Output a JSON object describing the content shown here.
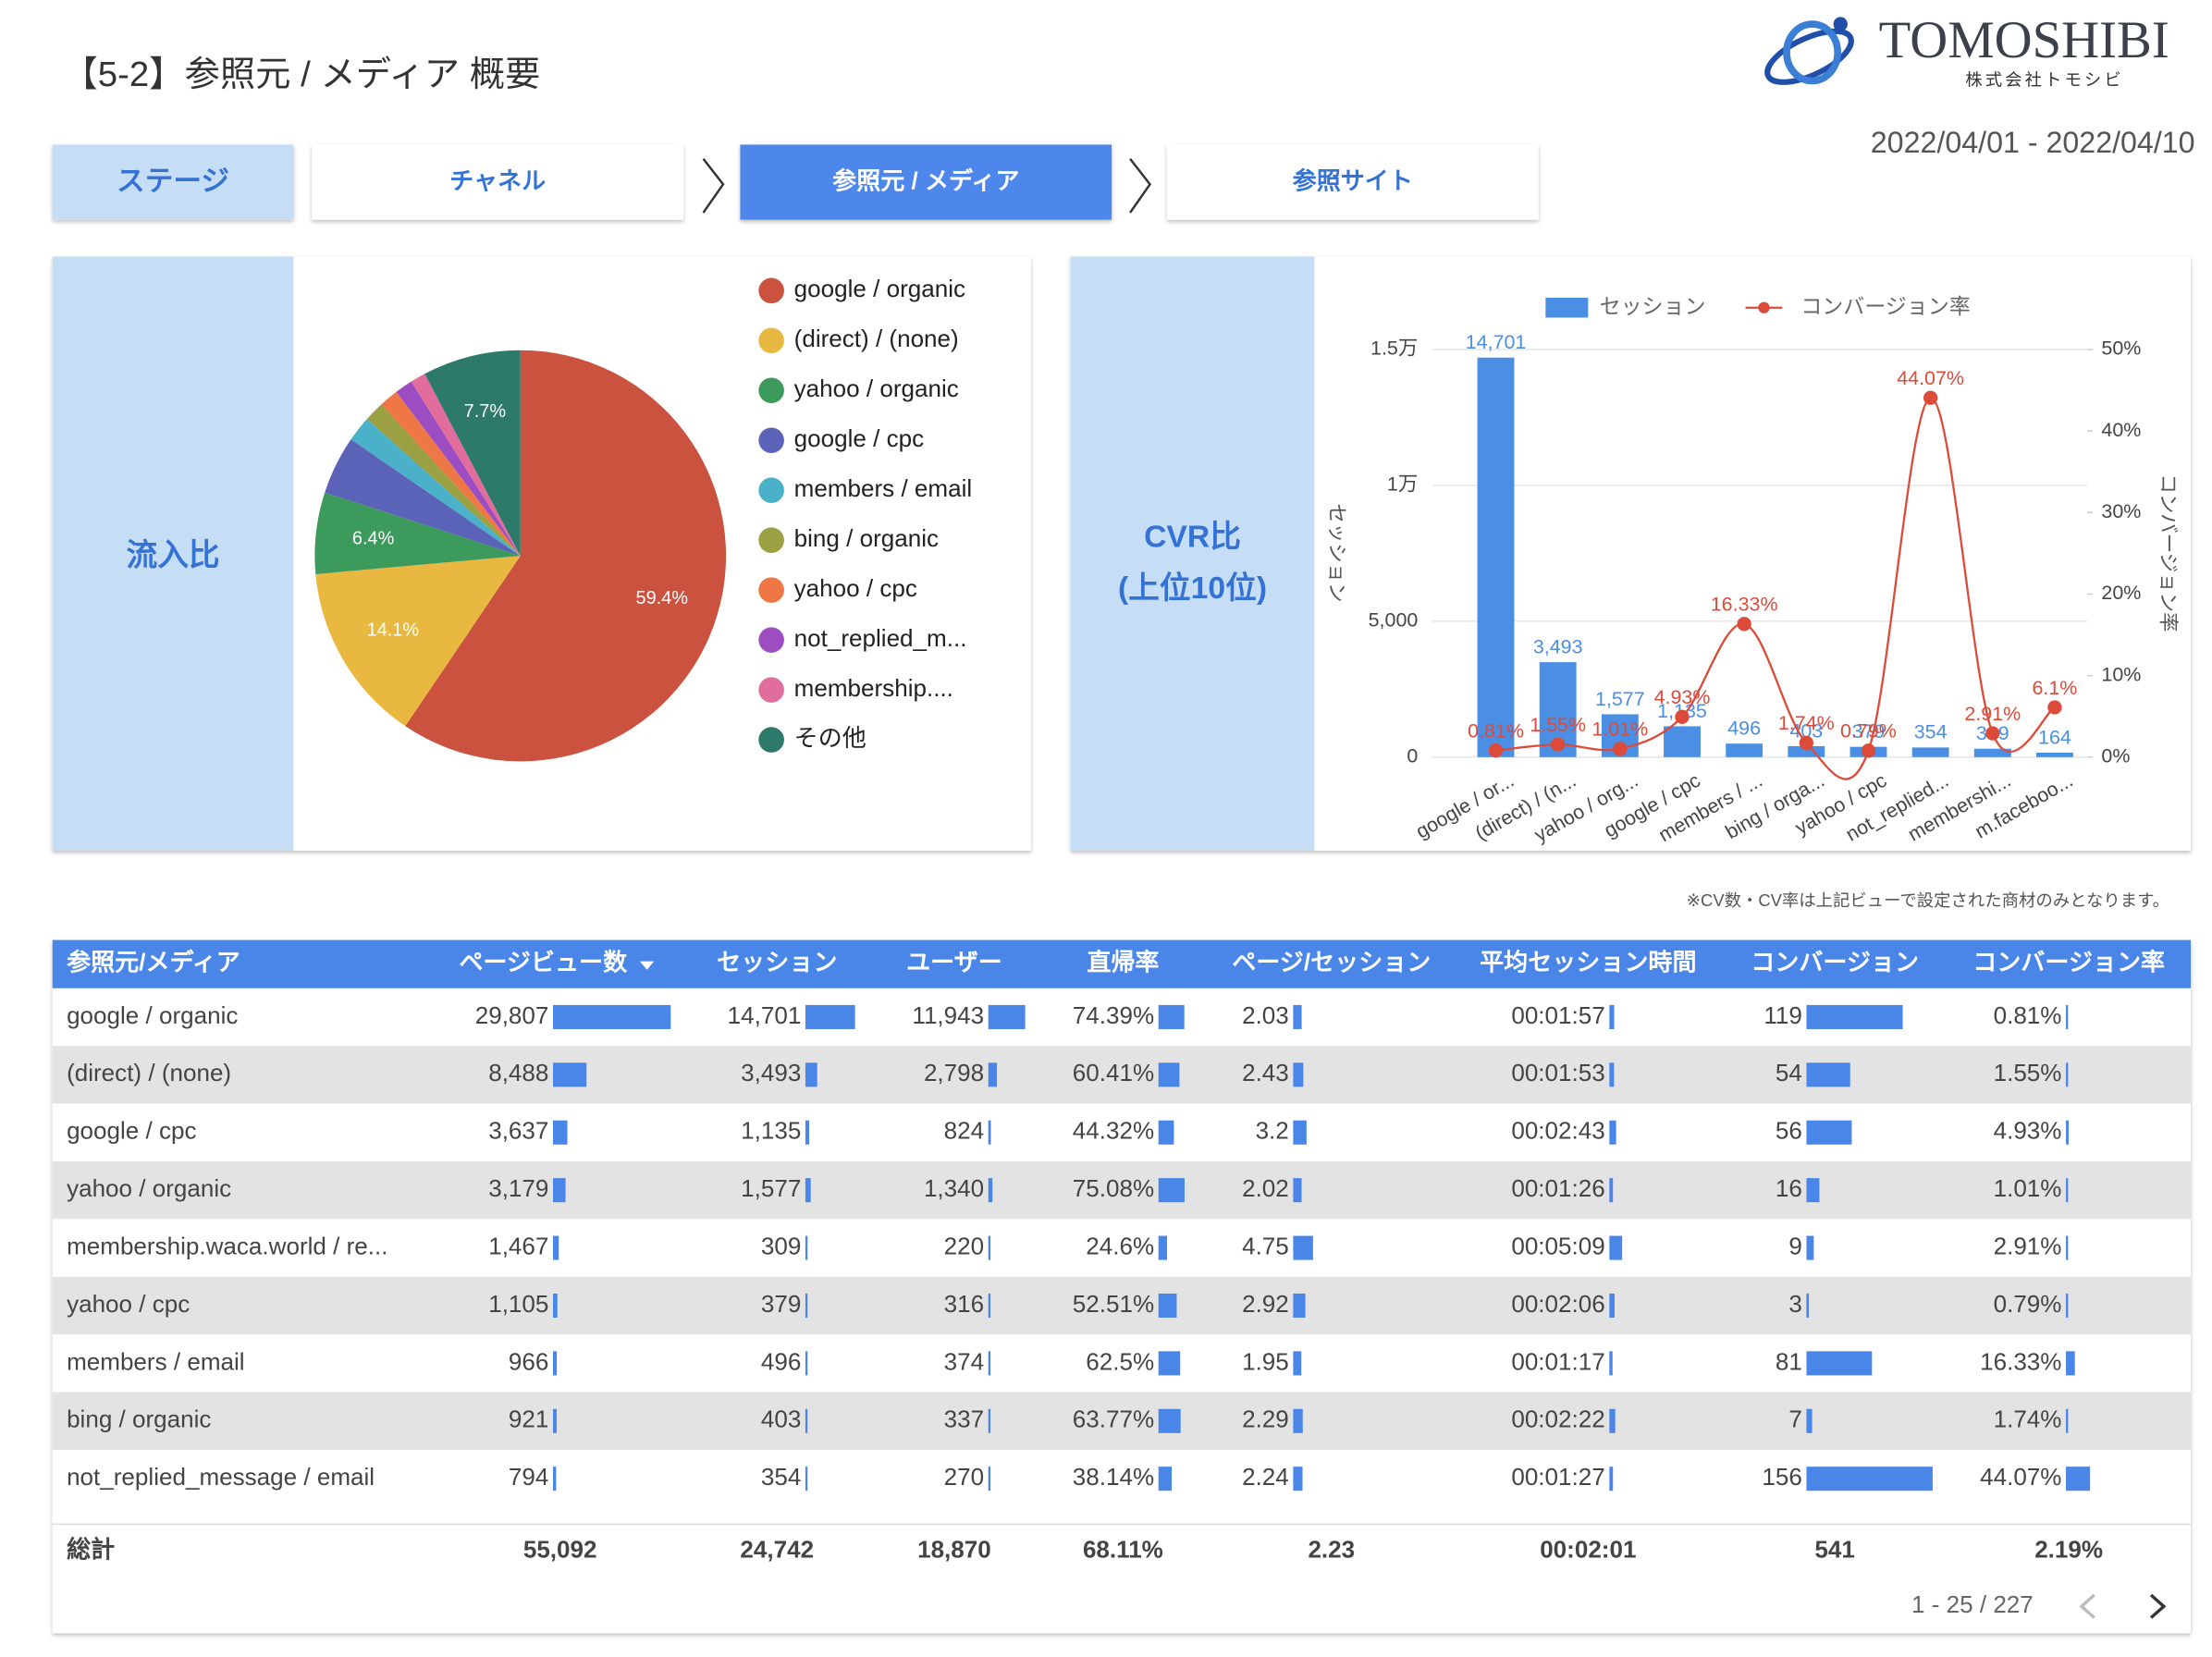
{
  "header": {
    "title": "【5-2】参照元 / メディア 概要",
    "logo": "TOMOSHIBI",
    "logo_sub": "株式会社トモシビ",
    "date_range": "2022/04/01 - 2022/04/10"
  },
  "tabs": {
    "items": [
      "ステージ",
      "チャネル",
      "参照元 / メディア",
      "参照サイト"
    ],
    "active": 2
  },
  "chart_data": [
    {
      "type": "pie",
      "label": "流入比",
      "categories": [
        "google / organic",
        "(direct) / (none)",
        "yahoo / organic",
        "google / cpc",
        "members / email",
        "bing / organic",
        "yahoo / cpc",
        "not_replied_m...",
        "membership....",
        "その他"
      ],
      "values": [
        59.4,
        14.1,
        6.4,
        4.6,
        2.0,
        1.6,
        1.5,
        1.4,
        1.2,
        7.7
      ],
      "value_labels": [
        "59.4%",
        "14.1%",
        "6.4%",
        null,
        null,
        null,
        null,
        null,
        null,
        "7.7%"
      ],
      "colors": [
        "#cc5240",
        "#e9b841",
        "#3d9a5d",
        "#5b63b8",
        "#4bb1c9",
        "#9ba042",
        "#ef7645",
        "#9b4dc1",
        "#e16d9d",
        "#2d7a6a"
      ]
    },
    {
      "type": "bar",
      "label_lines": [
        "CVR比",
        "(上位10位)"
      ],
      "categories": [
        "google / or...",
        "(direct) / (n...",
        "yahoo / org...",
        "google / cpc",
        "members / ...",
        "bing / orga...",
        "yahoo / cpc",
        "not_replied...",
        "membershi...",
        "m.faceboo..."
      ],
      "series": [
        {
          "name": "セッション",
          "type": "bar",
          "color": "#4a8fe3",
          "values": [
            14701,
            3493,
            1577,
            1135,
            496,
            403,
            379,
            354,
            309,
            164
          ],
          "value_labels": [
            "14,701",
            "3,493",
            "1,577",
            "1,135",
            "496",
            "403",
            "379",
            "354",
            "309",
            "164"
          ]
        },
        {
          "name": "コンバージョン率",
          "type": "line",
          "axis": "y2",
          "color": "#dc4b3a",
          "values": [
            0.81,
            1.55,
            1.01,
            4.93,
            16.33,
            1.74,
            0.79,
            44.07,
            2.91,
            6.1
          ],
          "value_labels": [
            "0.81%",
            "1.55%",
            "1.01%",
            "4.93%",
            "16.33%",
            "1.74%",
            "0.79%",
            "44.07%",
            "2.91%",
            "6.1%"
          ]
        }
      ],
      "ylabel": "セッション",
      "y2label": "コンバージョン率",
      "ylim": [
        0,
        15000
      ],
      "yticks": [
        0,
        {
          "value": 5000,
          "label": "5,000"
        },
        {
          "value": 10000,
          "label": "1万"
        },
        {
          "value": 15000,
          "label": "1.5万"
        }
      ],
      "y2lim": [
        0,
        50
      ],
      "y2ticks": [
        {
          "value": 0,
          "label": "0%"
        },
        {
          "value": 10,
          "label": "10%"
        },
        {
          "value": 20,
          "label": "20%"
        },
        {
          "value": 30,
          "label": "30%"
        },
        {
          "value": 40,
          "label": "40%"
        },
        {
          "value": 50,
          "label": "50%"
        }
      ],
      "grid": true
    }
  ],
  "note": "※CV数・CV率は上記ビューで設定された商材のみとなります。",
  "table": {
    "columns": [
      "参照元/メディア",
      "ページビュー数",
      "セッション",
      "ユーザー",
      "直帰率",
      "ページ/セッション",
      "平均セッション時間",
      "コンバージョン",
      "コンバージョン率"
    ],
    "sort_column": 1,
    "rows": [
      [
        "google / organic",
        {
          "value": 29807,
          "label": "29,807"
        },
        {
          "value": 14701,
          "label": "14,701"
        },
        {
          "value": 11943,
          "label": "11,943"
        },
        {
          "value": 74.39,
          "label": "74.39%"
        },
        2.03,
        {
          "value": 117,
          "label": "00:01:57"
        },
        119,
        {
          "value": 0.81,
          "label": "0.81%"
        }
      ],
      [
        "(direct) / (none)",
        {
          "value": 8488,
          "label": "8,488"
        },
        {
          "value": 3493,
          "label": "3,493"
        },
        {
          "value": 2798,
          "label": "2,798"
        },
        {
          "value": 60.41,
          "label": "60.41%"
        },
        2.43,
        {
          "value": 113,
          "label": "00:01:53"
        },
        54,
        {
          "value": 1.55,
          "label": "1.55%"
        }
      ],
      [
        "google / cpc",
        {
          "value": 3637,
          "label": "3,637"
        },
        {
          "value": 1135,
          "label": "1,135"
        },
        824,
        {
          "value": 44.32,
          "label": "44.32%"
        },
        3.2,
        {
          "value": 163,
          "label": "00:02:43"
        },
        56,
        {
          "value": 4.93,
          "label": "4.93%"
        }
      ],
      [
        "yahoo / organic",
        {
          "value": 3179,
          "label": "3,179"
        },
        {
          "value": 1577,
          "label": "1,577"
        },
        {
          "value": 1340,
          "label": "1,340"
        },
        {
          "value": 75.08,
          "label": "75.08%"
        },
        2.02,
        {
          "value": 86,
          "label": "00:01:26"
        },
        16,
        {
          "value": 1.01,
          "label": "1.01%"
        }
      ],
      [
        "membership.waca.world / re...",
        {
          "value": 1467,
          "label": "1,467"
        },
        309,
        220,
        {
          "value": 24.6,
          "label": "24.6%"
        },
        4.75,
        {
          "value": 309,
          "label": "00:05:09"
        },
        9,
        {
          "value": 2.91,
          "label": "2.91%"
        }
      ],
      [
        "yahoo / cpc",
        {
          "value": 1105,
          "label": "1,105"
        },
        379,
        316,
        {
          "value": 52.51,
          "label": "52.51%"
        },
        2.92,
        {
          "value": 126,
          "label": "00:02:06"
        },
        3,
        {
          "value": 0.79,
          "label": "0.79%"
        }
      ],
      [
        "members / email",
        966,
        496,
        374,
        {
          "value": 62.5,
          "label": "62.5%"
        },
        1.95,
        {
          "value": 77,
          "label": "00:01:17"
        },
        81,
        {
          "value": 16.33,
          "label": "16.33%"
        }
      ],
      [
        "bing / organic",
        921,
        403,
        337,
        {
          "value": 63.77,
          "label": "63.77%"
        },
        2.29,
        {
          "value": 142,
          "label": "00:02:22"
        },
        7,
        {
          "value": 1.74,
          "label": "1.74%"
        }
      ],
      [
        "not_replied_message / email",
        794,
        354,
        270,
        {
          "value": 38.14,
          "label": "38.14%"
        },
        2.24,
        {
          "value": 87,
          "label": "00:01:27"
        },
        156,
        {
          "value": 44.07,
          "label": "44.07%"
        }
      ]
    ],
    "totals": [
      "総計",
      "55,092",
      "24,742",
      "18,870",
      "68.11%",
      "2.23",
      "00:02:01",
      "541",
      "2.19%"
    ],
    "pagination": "1 - 25 / 227"
  }
}
